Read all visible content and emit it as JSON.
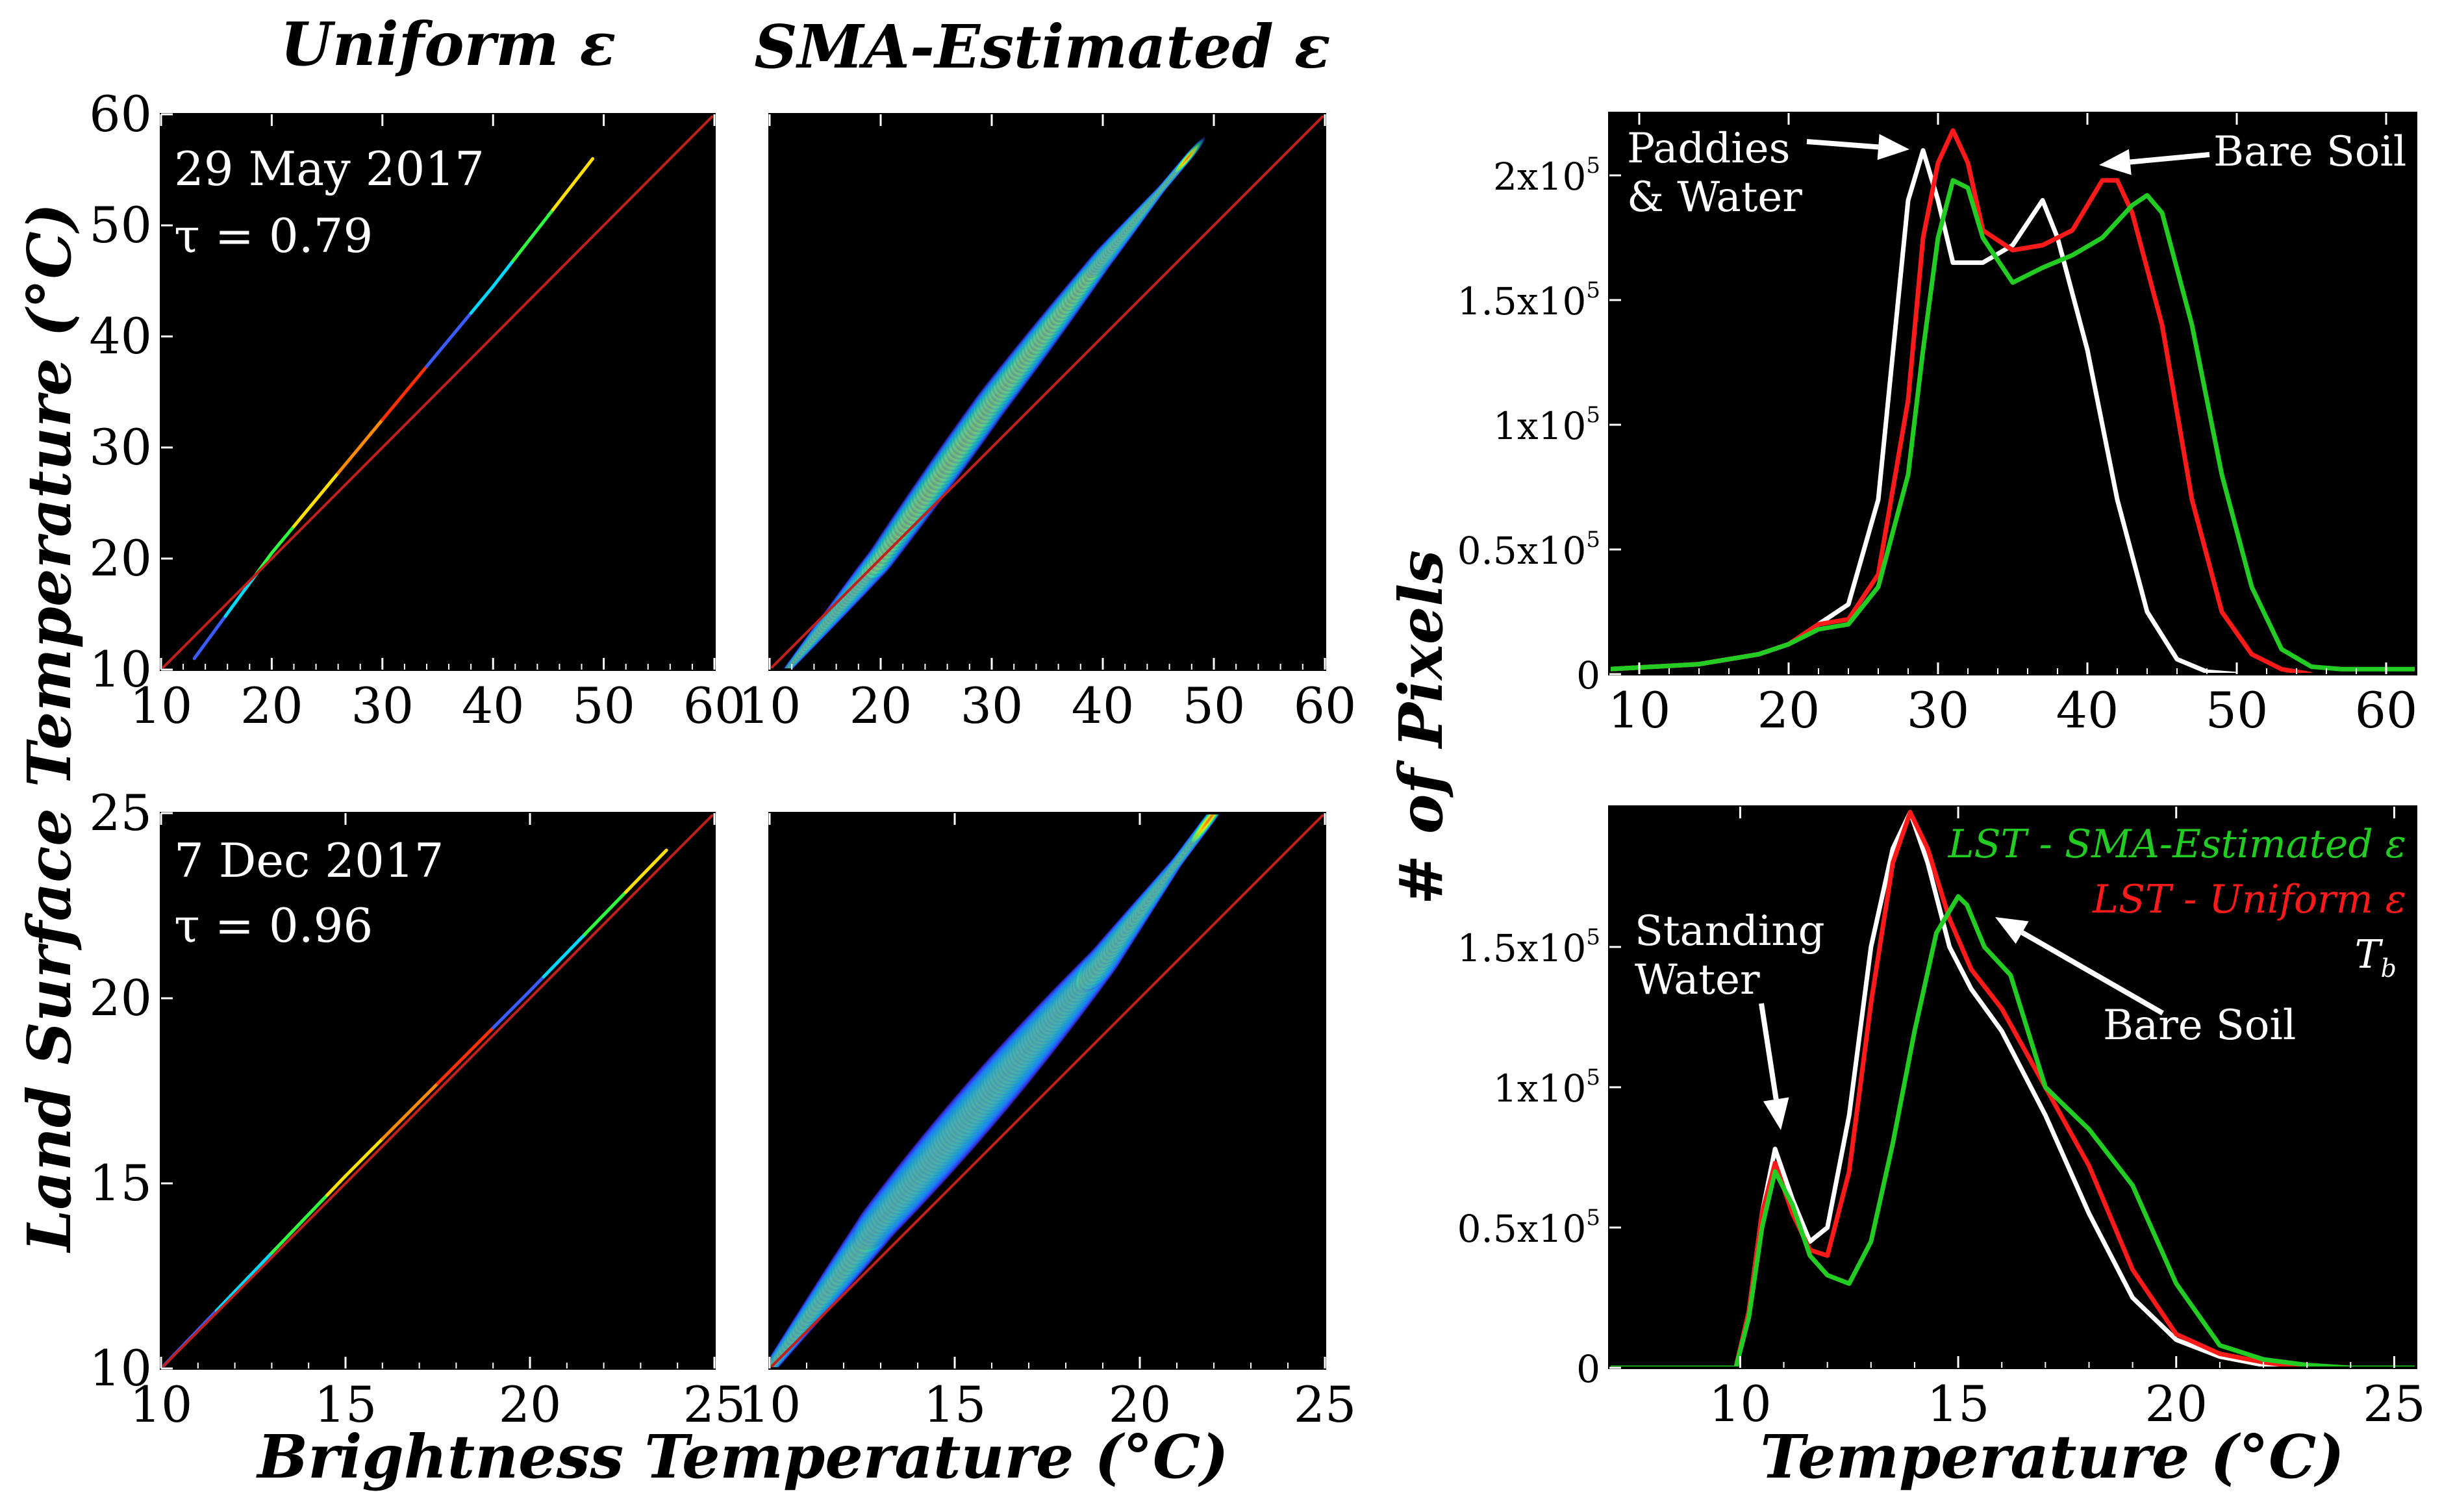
{
  "headers": {
    "col1": "Uniform ε",
    "col2": "SMA-Estimated ε"
  },
  "axis_labels": {
    "left_y": "Land Surface Temperature (°C)",
    "left_x": "Brightness Temperature (°C)",
    "right_y": "# of Pixels",
    "right_x": "Temperature (°C)"
  },
  "annotations": {
    "date1": "29 May 2017",
    "tau1": "τ = 0.79",
    "date2": "7 Dec 2017",
    "tau2": "τ = 0.96",
    "paddies_line1": "Paddies",
    "paddies_line2": "& Water",
    "bare_soil_top": "Bare Soil",
    "standing_line1": "Standing",
    "standing_line2": "Water",
    "bare_soil_bottom": "Bare Soil"
  },
  "legend": [
    {
      "label": "LST - SMA-Estimated ε",
      "color": "#22cc22"
    },
    {
      "label": "LST - Uniform ε",
      "color": "#ff1a1a"
    },
    {
      "label": "Tb",
      "color": "#ffffff"
    }
  ],
  "colors": {
    "white": "#ffffff",
    "red": "#ff1a1a",
    "green": "#22cc22",
    "one_to_one": "#c0201a"
  },
  "chart_data": [
    {
      "type": "scatter",
      "id": "may-uniform",
      "title": "Uniform ε",
      "xlabel": "Brightness Temperature (°C)",
      "ylabel": "Land Surface Temperature (°C)",
      "xlim": [
        10,
        60
      ],
      "ylim": [
        10,
        60
      ],
      "xticks": [
        10,
        20,
        30,
        40,
        50,
        60
      ],
      "yticks": [
        10,
        20,
        30,
        40,
        50,
        60
      ],
      "one_to_one": [
        [
          10,
          10
        ],
        [
          60,
          60
        ]
      ],
      "density_ridge": [
        [
          13,
          11
        ],
        [
          20,
          20.5
        ],
        [
          30,
          32.5
        ],
        [
          40,
          44.5
        ],
        [
          49,
          56
        ]
      ],
      "width": 0.3
    },
    {
      "type": "scatter",
      "id": "may-sma",
      "title": "SMA-Estimated ε",
      "xlabel": "Brightness Temperature (°C)",
      "ylabel": "Land Surface Temperature (°C)",
      "xlim": [
        10,
        60
      ],
      "ylim": [
        10,
        60
      ],
      "xticks": [
        10,
        20,
        30,
        40,
        50,
        60
      ],
      "yticks": [],
      "one_to_one": [
        [
          10,
          10
        ],
        [
          60,
          60
        ]
      ],
      "density_ridge": [
        [
          12,
          10.5
        ],
        [
          20,
          20
        ],
        [
          30,
          34
        ],
        [
          40,
          47
        ],
        [
          48,
          56.5
        ]
      ],
      "width": 2.5
    },
    {
      "type": "scatter",
      "id": "dec-uniform",
      "xlabel": "Brightness Temperature (°C)",
      "ylabel": "Land Surface Temperature (°C)",
      "xlim": [
        10,
        25
      ],
      "ylim": [
        10,
        25
      ],
      "xticks": [
        10,
        15,
        20,
        25
      ],
      "yticks": [
        10,
        15,
        20,
        25
      ],
      "one_to_one": [
        [
          10,
          10
        ],
        [
          25,
          25
        ]
      ],
      "density_ridge": [
        [
          10,
          10
        ],
        [
          15,
          15.2
        ],
        [
          20,
          20.2
        ],
        [
          23.7,
          24
        ]
      ],
      "width": 0.08
    },
    {
      "type": "scatter",
      "id": "dec-sma",
      "xlabel": "Brightness Temperature (°C)",
      "ylabel": "Land Surface Temperature (°C)",
      "xlim": [
        10,
        25
      ],
      "ylim": [
        10,
        25
      ],
      "xticks": [
        10,
        15,
        20,
        25
      ],
      "yticks": [],
      "one_to_one": [
        [
          10,
          10
        ],
        [
          25,
          25
        ]
      ],
      "density_ridge": [
        [
          10,
          10
        ],
        [
          13,
          14
        ],
        [
          16,
          17.5
        ],
        [
          19,
          21
        ],
        [
          22,
          25
        ]
      ],
      "width": 1.1
    },
    {
      "type": "line",
      "id": "hist-may",
      "xlabel": "Temperature (°C)",
      "ylabel": "# of Pixels",
      "xlim": [
        8,
        62
      ],
      "ylim": [
        0,
        225000
      ],
      "xticks": [
        10,
        20,
        30,
        40,
        50,
        60
      ],
      "yticks": [
        0,
        50000,
        100000,
        150000,
        200000
      ],
      "ytick_labels": [
        "0",
        "0.5x10^5",
        "1x10^5",
        "1.5x10^5",
        "2x10^5"
      ],
      "series": [
        {
          "name": "Tb",
          "color": "#ffffff",
          "x": [
            8,
            14,
            18,
            20,
            22,
            24,
            26,
            27,
            28,
            29,
            30,
            31,
            33,
            35,
            37,
            38,
            40,
            42,
            44,
            46,
            48,
            50
          ],
          "y": [
            2000,
            4000,
            8000,
            12000,
            20000,
            28000,
            70000,
            130000,
            190000,
            210000,
            190000,
            165000,
            165000,
            172000,
            190000,
            175000,
            130000,
            70000,
            25000,
            6000,
            1000,
            0
          ]
        },
        {
          "name": "LST - Uniform ε",
          "color": "#ff1a1a",
          "x": [
            8,
            14,
            18,
            20,
            22,
            24,
            26,
            28,
            29,
            30,
            31,
            32,
            33,
            35,
            37,
            39,
            41,
            42,
            43,
            45,
            47,
            49,
            51,
            53,
            55
          ],
          "y": [
            2000,
            4000,
            8000,
            12000,
            20000,
            22000,
            40000,
            110000,
            175000,
            205000,
            218000,
            205000,
            178000,
            170000,
            172000,
            178000,
            198000,
            198000,
            185000,
            140000,
            70000,
            25000,
            8000,
            2000,
            0
          ]
        },
        {
          "name": "LST - SMA-Estimated ε",
          "color": "#22cc22",
          "x": [
            8,
            14,
            18,
            20,
            22,
            24,
            26,
            28,
            29,
            30,
            31,
            32,
            33,
            35,
            37,
            39,
            41,
            43,
            44,
            45,
            47,
            49,
            51,
            53,
            55,
            57,
            62
          ],
          "y": [
            2000,
            4000,
            8000,
            12000,
            18000,
            20000,
            35000,
            80000,
            130000,
            175000,
            198000,
            195000,
            175000,
            157000,
            163000,
            168000,
            175000,
            188000,
            192000,
            185000,
            140000,
            80000,
            35000,
            10000,
            3000,
            2000,
            2000
          ]
        }
      ]
    },
    {
      "type": "line",
      "id": "hist-dec",
      "xlabel": "Temperature (°C)",
      "ylabel": "# of Pixels",
      "xlim": [
        7,
        25.5
      ],
      "ylim": [
        0,
        200000
      ],
      "xticks": [
        10,
        15,
        20,
        25
      ],
      "yticks": [
        0,
        50000,
        100000,
        150000
      ],
      "ytick_labels": [
        "0",
        "0.5x10^5",
        "1x10^5",
        "1.5x10^5"
      ],
      "series": [
        {
          "name": "Tb",
          "color": "#ffffff",
          "x": [
            7,
            9.9,
            10.2,
            10.5,
            10.8,
            11.2,
            11.6,
            12,
            12.5,
            13,
            13.5,
            13.9,
            14.3,
            14.8,
            15.3,
            16,
            17,
            18,
            19,
            20,
            21,
            22,
            23,
            25.5
          ],
          "y": [
            0,
            0,
            20000,
            55000,
            78000,
            60000,
            45000,
            50000,
            90000,
            150000,
            185000,
            198000,
            180000,
            150000,
            135000,
            120000,
            90000,
            55000,
            25000,
            10000,
            4000,
            1000,
            0,
            0
          ]
        },
        {
          "name": "LST - Uniform ε",
          "color": "#ff1a1a",
          "x": [
            7,
            9.9,
            10.2,
            10.5,
            10.8,
            11.2,
            11.6,
            12,
            12.5,
            13,
            13.5,
            13.9,
            14.3,
            14.8,
            15.3,
            16,
            17,
            18,
            19,
            20,
            21,
            22,
            23,
            25.5
          ],
          "y": [
            0,
            0,
            20000,
            55000,
            73000,
            55000,
            42000,
            40000,
            70000,
            130000,
            180000,
            198000,
            185000,
            160000,
            142000,
            128000,
            100000,
            72000,
            35000,
            12000,
            5000,
            2000,
            0,
            0
          ]
        },
        {
          "name": "LST - SMA-Estimated ε",
          "color": "#22cc22",
          "x": [
            7,
            9.9,
            10.2,
            10.5,
            10.8,
            11.2,
            11.6,
            12,
            12.5,
            13,
            13.5,
            14,
            14.5,
            15,
            15.2,
            15.6,
            16.2,
            17,
            18,
            19,
            20,
            21,
            22,
            23,
            24,
            25.5
          ],
          "y": [
            0,
            0,
            18000,
            50000,
            70000,
            58000,
            40000,
            33000,
            30000,
            45000,
            80000,
            120000,
            155000,
            168000,
            165000,
            150000,
            140000,
            100000,
            85000,
            65000,
            30000,
            8000,
            3000,
            1000,
            0,
            0
          ]
        }
      ]
    }
  ]
}
